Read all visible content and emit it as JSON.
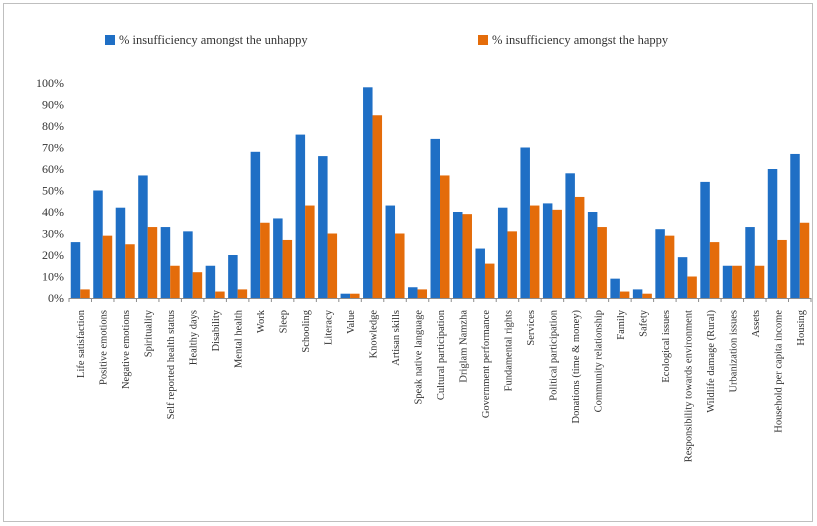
{
  "chart_data": {
    "type": "bar",
    "categories": [
      "Life satisfaction",
      "Positive emotions",
      "Negative emotions",
      "Spirituality",
      "Self reported health status",
      "Healthy days",
      "Disability",
      "Mental health",
      "Work",
      "Sleep",
      "Schooling",
      "Literacy",
      "Value",
      "Knowledge",
      "Artisan skills",
      "Speak native language",
      "Cultural participation",
      "Driglam Namzha",
      "Government performance",
      "Fundamental rights",
      "Services",
      "Political participation",
      "Donations (time & money)",
      "Community relationship",
      "Family",
      "Safety",
      "Ecological issues",
      "Responsibility towards environment",
      "Wildlife damage (Rural)",
      "Urbanization issues",
      "Assets",
      "Household per capita income",
      "Housing"
    ],
    "series": [
      {
        "name": "% insufficiency amongst the unhappy",
        "color": "#1f6fc5",
        "values": [
          26,
          50,
          42,
          57,
          33,
          31,
          15,
          20,
          68,
          37,
          76,
          66,
          2,
          98,
          43,
          5,
          74,
          40,
          23,
          42,
          70,
          44,
          58,
          40,
          9,
          4,
          32,
          19,
          54,
          15,
          33,
          60,
          67
        ]
      },
      {
        "name": "% insufficiency amongst the happy",
        "color": "#e46c0a",
        "values": [
          4,
          29,
          25,
          33,
          15,
          12,
          3,
          4,
          35,
          27,
          43,
          30,
          2,
          85,
          30,
          4,
          57,
          39,
          16,
          31,
          43,
          41,
          47,
          33,
          3,
          2,
          29,
          10,
          26,
          15,
          15,
          27,
          35
        ]
      }
    ],
    "ylim": [
      0,
      100
    ],
    "yticks": [
      "0%",
      "10%",
      "20%",
      "30%",
      "40%",
      "50%",
      "60%",
      "70%",
      "80%",
      "90%",
      "100%"
    ],
    "grid": false,
    "legend_position": "top"
  }
}
